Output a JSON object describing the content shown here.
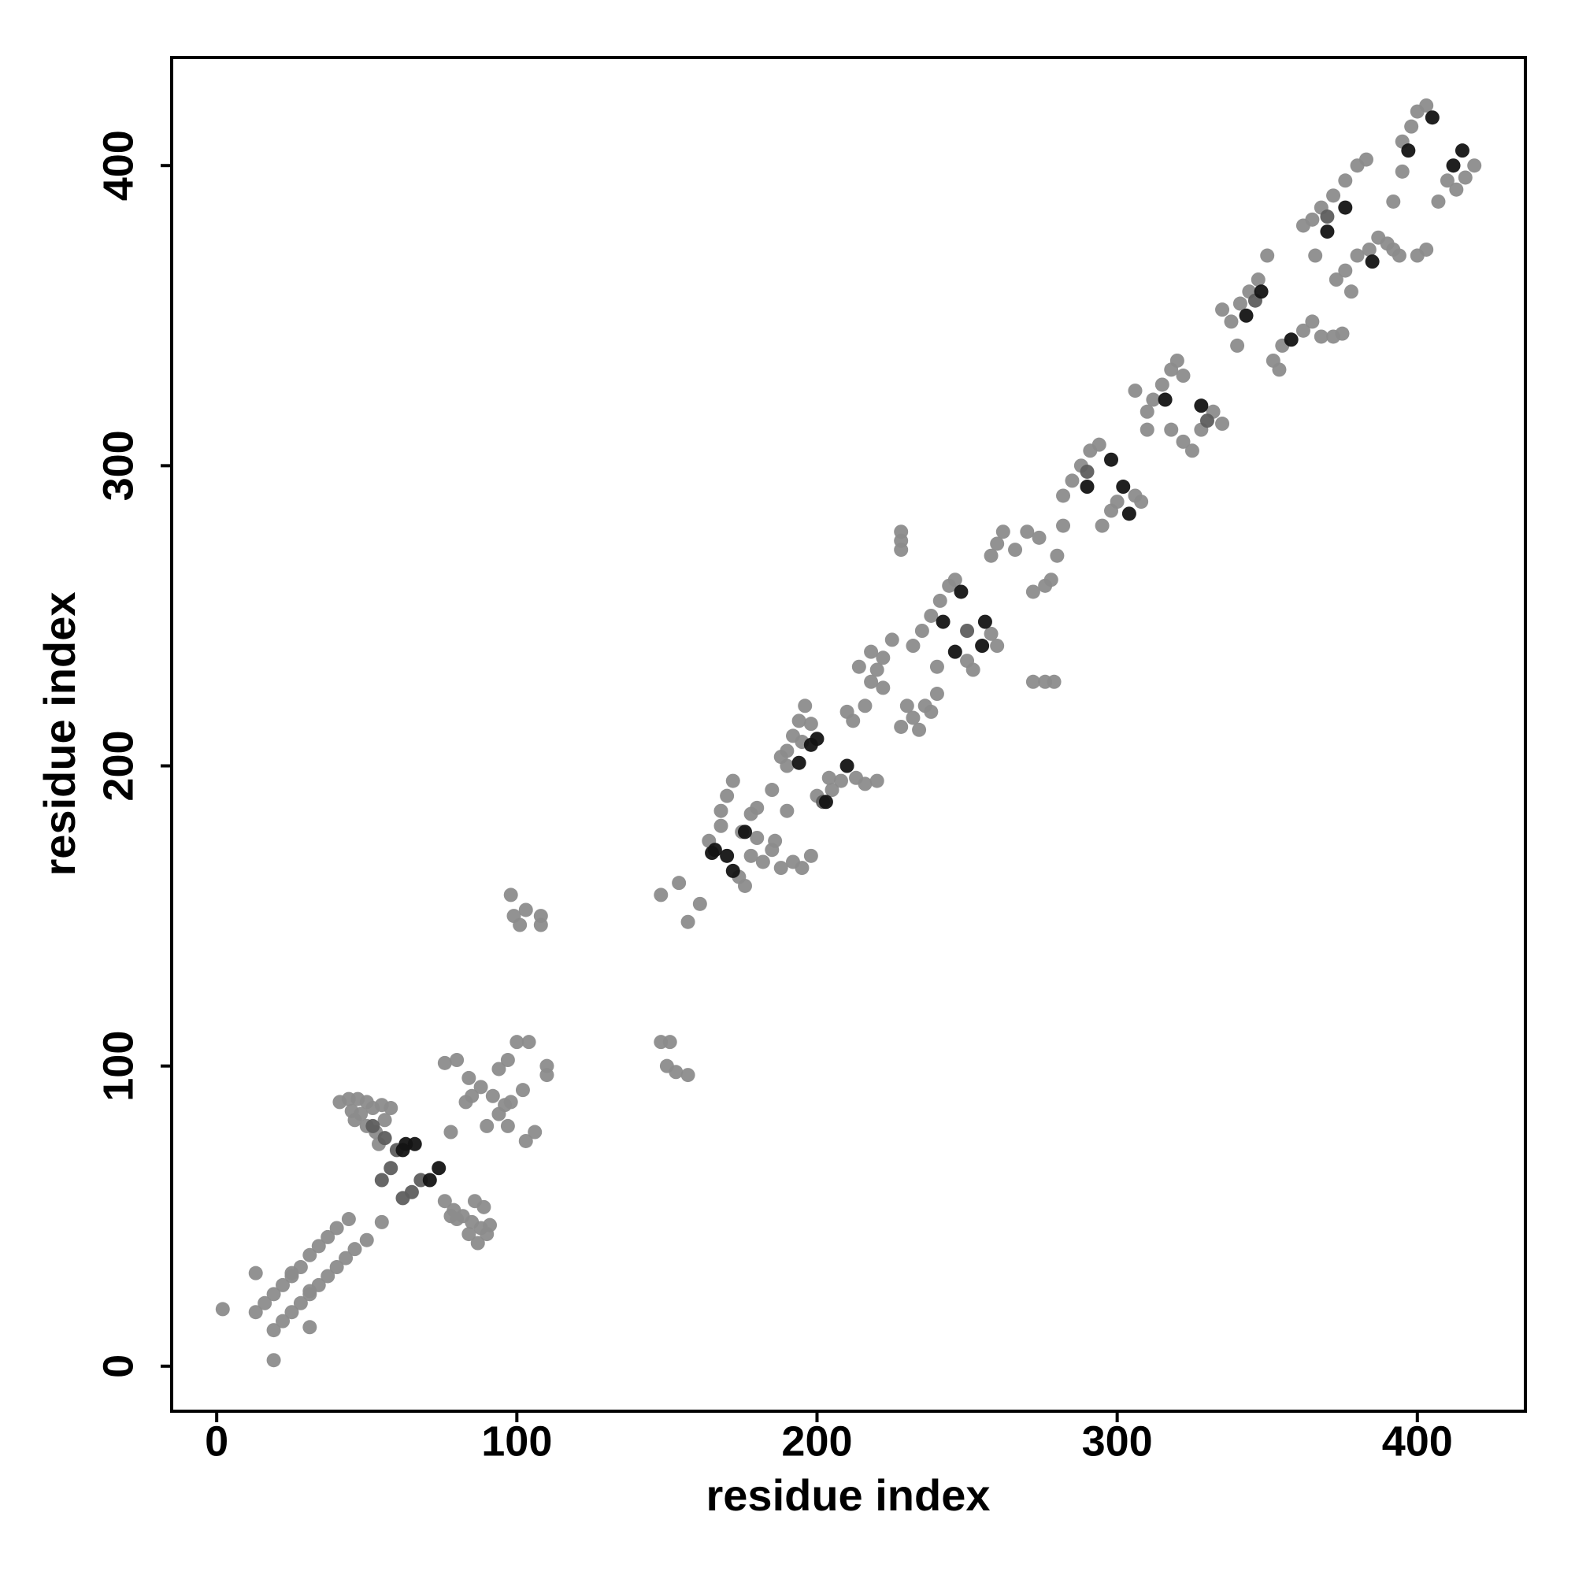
{
  "chart_data": {
    "type": "scatter",
    "xlabel": "residue index",
    "ylabel": "residue index",
    "xlim": [
      -15,
      436
    ],
    "ylim": [
      -15,
      436
    ],
    "xticks": [
      0,
      100,
      200,
      300,
      400
    ],
    "yticks": [
      0,
      100,
      200,
      300,
      400
    ],
    "grid": false,
    "series": [
      {
        "color": "#8c8c8c",
        "x": [
          2,
          19,
          13,
          16,
          19,
          22,
          25,
          28,
          31,
          34,
          37,
          40,
          44,
          19,
          22,
          25,
          28,
          31,
          34,
          37,
          40,
          43,
          46,
          50,
          55,
          13,
          31,
          25,
          31,
          41,
          44,
          47,
          50,
          45,
          48,
          52,
          55,
          46,
          50,
          53,
          56,
          58,
          54,
          76,
          79,
          82,
          85,
          88,
          90,
          87,
          84,
          80,
          86,
          89,
          91,
          78,
          76,
          80,
          84,
          88,
          92,
          96,
          94,
          97,
          100,
          104,
          90,
          94,
          98,
          102,
          103,
          106,
          110,
          110,
          85,
          83,
          78,
          97,
          98,
          99,
          101,
          108,
          103,
          108,
          148,
          151,
          153,
          157,
          150,
          148,
          154,
          157,
          161,
          164,
          168,
          170,
          172,
          168,
          175,
          178,
          180,
          174,
          176,
          178,
          182,
          185,
          188,
          192,
          195,
          198,
          186,
          180,
          185,
          190,
          188,
          190,
          192,
          194,
          196,
          198,
          195,
          190,
          200,
          205,
          208,
          213,
          216,
          220,
          204,
          212,
          216,
          218,
          220,
          222,
          225,
          214,
          218,
          222,
          210,
          228,
          232,
          236,
          240,
          230,
          234,
          238,
          228,
          228,
          228,
          232,
          235,
          238,
          241,
          244,
          246,
          240,
          250,
          258,
          260,
          252,
          272,
          276,
          279,
          258,
          260,
          262,
          266,
          270,
          274,
          272,
          276,
          278,
          280,
          282,
          282,
          285,
          288,
          291,
          294,
          295,
          298,
          300,
          306,
          308,
          306,
          310,
          312,
          315,
          318,
          320,
          322,
          310,
          318,
          322,
          325,
          328,
          332,
          335,
          335,
          338,
          341,
          344,
          347,
          350,
          340,
          352,
          355,
          362,
          365,
          368,
          354,
          362,
          365,
          368,
          372,
          376,
          380,
          383,
          366,
          373,
          376,
          380,
          384,
          387,
          390,
          392,
          378,
          394,
          395,
          398,
          400,
          403,
          410,
          413,
          416,
          419,
          407,
          400,
          403,
          392,
          395,
          372,
          375
        ],
        "y": [
          19,
          2,
          18,
          21,
          24,
          27,
          30,
          33,
          37,
          40,
          43,
          46,
          49,
          12,
          15,
          18,
          21,
          24,
          27,
          30,
          33,
          36,
          39,
          42,
          48,
          31,
          13,
          31,
          25,
          88,
          89,
          89,
          88,
          85,
          84,
          86,
          87,
          82,
          80,
          78,
          82,
          86,
          74,
          55,
          52,
          50,
          48,
          46,
          44,
          41,
          44,
          49,
          55,
          53,
          47,
          50,
          101,
          102,
          96,
          93,
          90,
          87,
          99,
          102,
          108,
          108,
          80,
          84,
          88,
          92,
          75,
          78,
          100,
          97,
          90,
          88,
          78,
          80,
          157,
          150,
          147,
          150,
          152,
          147,
          108,
          108,
          98,
          97,
          100,
          157,
          161,
          148,
          154,
          175,
          185,
          190,
          195,
          180,
          178,
          184,
          186,
          163,
          160,
          170,
          168,
          172,
          166,
          168,
          166,
          170,
          175,
          176,
          192,
          185,
          203,
          205,
          210,
          215,
          220,
          214,
          208,
          200,
          190,
          192,
          195,
          196,
          194,
          195,
          196,
          215,
          220,
          228,
          232,
          236,
          242,
          233,
          238,
          226,
          218,
          213,
          216,
          220,
          224,
          220,
          212,
          218,
          272,
          275,
          278,
          240,
          245,
          250,
          255,
          260,
          262,
          233,
          235,
          244,
          240,
          232,
          228,
          228,
          228,
          270,
          274,
          278,
          272,
          278,
          276,
          258,
          260,
          262,
          270,
          280,
          290,
          295,
          300,
          305,
          307,
          280,
          285,
          288,
          290,
          288,
          325,
          318,
          322,
          327,
          332,
          335,
          330,
          312,
          312,
          308,
          305,
          312,
          318,
          314,
          352,
          348,
          354,
          358,
          362,
          370,
          340,
          335,
          340,
          345,
          348,
          343,
          332,
          380,
          382,
          386,
          390,
          395,
          400,
          402,
          370,
          362,
          365,
          370,
          372,
          376,
          374,
          372,
          358,
          370,
          408,
          413,
          418,
          420,
          395,
          392,
          396,
          400,
          388,
          370,
          372,
          388,
          398,
          343,
          344
        ]
      },
      {
        "color": "#5e5e5e",
        "x": [
          55,
          58,
          62,
          65,
          68,
          60,
          56,
          52,
          202,
          250,
          290,
          330,
          346,
          370
        ],
        "y": [
          62,
          66,
          56,
          58,
          62,
          72,
          76,
          80,
          188,
          245,
          298,
          315,
          355,
          383
        ]
      },
      {
        "color": "#141414",
        "x": [
          63,
          66,
          71,
          74,
          62,
          166,
          165,
          170,
          172,
          176,
          194,
          198,
          200,
          203,
          210,
          242,
          248,
          246,
          255,
          256,
          290,
          298,
          304,
          302,
          316,
          328,
          343,
          348,
          358,
          370,
          376,
          385,
          405,
          397,
          412,
          415
        ],
        "y": [
          74,
          74,
          62,
          66,
          72,
          172,
          171,
          170,
          165,
          178,
          201,
          207,
          209,
          188,
          200,
          248,
          258,
          238,
          240,
          248,
          293,
          302,
          284,
          293,
          322,
          320,
          350,
          358,
          342,
          378,
          386,
          368,
          416,
          405,
          400,
          405
        ]
      }
    ]
  }
}
